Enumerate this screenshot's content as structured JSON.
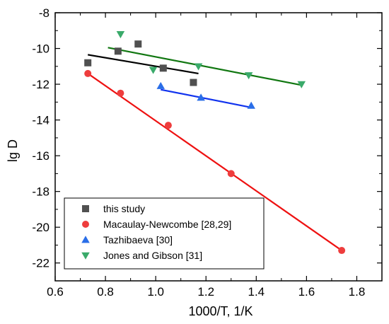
{
  "chart_data": {
    "type": "scatter",
    "xlabel": "1000/T, 1/K",
    "ylabel": "lg D",
    "xlim": [
      0.6,
      1.9
    ],
    "ylim": [
      -23,
      -8
    ],
    "xticks": [
      0.6,
      0.8,
      1.0,
      1.2,
      1.4,
      1.6,
      1.8
    ],
    "xtick_labels": [
      "0.6",
      "0.8",
      "1.0",
      "1.2",
      "1.4",
      "1.6",
      "1.8"
    ],
    "yticks": [
      -8,
      -10,
      -12,
      -14,
      -16,
      -18,
      -20,
      -22
    ],
    "ytick_labels": [
      "-8",
      "-10",
      "-12",
      "-14",
      "-16",
      "-18",
      "-20",
      "-22"
    ],
    "legend_position": "bottom-left",
    "series": [
      {
        "name": "this study",
        "legend_label": "this study",
        "marker": "square",
        "marker_color": "#505050",
        "line_color": "#000000",
        "points": [
          [
            0.73,
            -10.8
          ],
          [
            0.85,
            -10.15
          ],
          [
            0.93,
            -9.75
          ],
          [
            1.03,
            -11.1
          ],
          [
            1.15,
            -11.9
          ]
        ],
        "fit": [
          [
            0.73,
            -10.35
          ],
          [
            1.17,
            -11.4
          ]
        ]
      },
      {
        "name": "Macaulay-Newcombe",
        "legend_label": "Macaulay-Newcombe [28,29]",
        "marker": "circle",
        "marker_color": "#ee3d3d",
        "line_color": "#ee1111",
        "points": [
          [
            0.73,
            -11.4
          ],
          [
            0.86,
            -12.5
          ],
          [
            1.05,
            -14.3
          ],
          [
            1.3,
            -17.0
          ],
          [
            1.74,
            -21.3
          ]
        ],
        "fit": [
          [
            0.73,
            -11.4
          ],
          [
            1.74,
            -21.3
          ]
        ]
      },
      {
        "name": "Tazhibaeva",
        "legend_label": "Tazhibaeva [30]",
        "marker": "triangle-up",
        "marker_color": "#2a6ee8",
        "line_color": "#1133ee",
        "points": [
          [
            1.02,
            -12.1
          ],
          [
            1.18,
            -12.75
          ],
          [
            1.38,
            -13.2
          ]
        ],
        "fit": [
          [
            1.02,
            -12.3
          ],
          [
            1.38,
            -13.3
          ]
        ]
      },
      {
        "name": "Jones and Gibson",
        "legend_label": "Jones and Gibson [31]",
        "marker": "triangle-down",
        "marker_color": "#3aaa6a",
        "line_color": "#117711",
        "points": [
          [
            0.86,
            -9.2
          ],
          [
            0.99,
            -11.2
          ],
          [
            1.17,
            -11.0
          ],
          [
            1.37,
            -11.5
          ],
          [
            1.58,
            -12.0
          ]
        ],
        "fit": [
          [
            0.81,
            -9.95
          ],
          [
            1.58,
            -12.05
          ]
        ]
      }
    ]
  }
}
